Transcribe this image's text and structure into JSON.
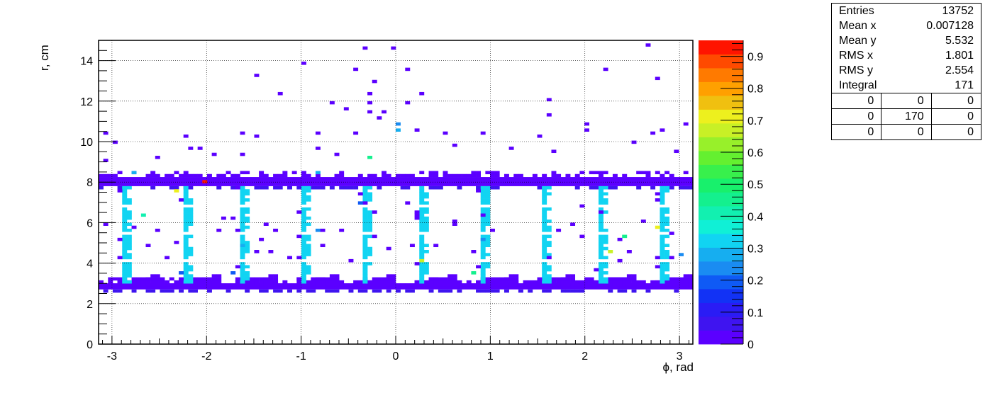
{
  "chart_data": {
    "type": "heatmap",
    "xlabel": "ϕ, rad",
    "ylabel": "r, cm",
    "xlim": [
      -3.1416,
      3.1416
    ],
    "ylim": [
      0,
      15
    ],
    "x_ticks": [
      "-3",
      "-2",
      "-1",
      "0",
      "1",
      "2",
      "3"
    ],
    "y_ticks": [
      "0",
      "2",
      "4",
      "6",
      "8",
      "10",
      "12",
      "14"
    ],
    "grid": true,
    "colorbar": {
      "range": [
        0,
        0.95
      ],
      "ticks": [
        "0",
        "0.1",
        "0.2",
        "0.3",
        "0.4",
        "0.5",
        "0.6",
        "0.7",
        "0.8",
        "0.9"
      ],
      "colors": [
        "#5B00FF",
        "#3F14F0",
        "#2A1CF5",
        "#1232F5",
        "#0F5AF5",
        "#1A8CF2",
        "#16AEF0",
        "#11D4F2",
        "#10F0D6",
        "#12F0B0",
        "#14F08E",
        "#18F06C",
        "#38F04C",
        "#64F030",
        "#98F02A",
        "#C8F026",
        "#EDF01E",
        "#F0C010",
        "#FFA000",
        "#FF7A00",
        "#FF4A00",
        "#FF1400"
      ]
    },
    "bands": [
      {
        "name": "outer ring",
        "r_min": 7.8,
        "r_max": 8.2,
        "value": 0.02
      },
      {
        "name": "inner ring",
        "r_min": 2.7,
        "r_max": 2.95,
        "value": 0.02
      }
    ],
    "columns_phi": [
      -2.86,
      -2.23,
      -1.6,
      -0.97,
      -0.34,
      0.29,
      0.92,
      1.55,
      2.18,
      2.81
    ],
    "columns_r": [
      3.0,
      7.8
    ],
    "columns_value": 0.33,
    "points": [
      {
        "x": -0.3,
        "y": 14.6,
        "v": 0.02
      },
      {
        "x": -0.02,
        "y": 14.6,
        "v": 0.02
      },
      {
        "x": 2.65,
        "y": 14.75,
        "v": 0.02
      },
      {
        "x": -0.95,
        "y": 13.9,
        "v": 0.02
      },
      {
        "x": -1.45,
        "y": 13.3,
        "v": 0.02
      },
      {
        "x": -0.4,
        "y": 13.6,
        "v": 0.02
      },
      {
        "x": 0.12,
        "y": 13.5,
        "v": 0.02
      },
      {
        "x": 2.22,
        "y": 13.5,
        "v": 0.02
      },
      {
        "x": 2.75,
        "y": 13.1,
        "v": 0.02
      },
      {
        "x": -0.2,
        "y": 13.0,
        "v": 0.02
      },
      {
        "x": -1.2,
        "y": 12.3,
        "v": 0.02
      },
      {
        "x": -0.29,
        "y": 12.3,
        "v": 0.02
      },
      {
        "x": 0.29,
        "y": 12.3,
        "v": 0.02
      },
      {
        "x": -0.65,
        "y": 11.9,
        "v": 0.02
      },
      {
        "x": -0.5,
        "y": 11.7,
        "v": 0.02
      },
      {
        "x": -0.29,
        "y": 11.9,
        "v": 0.02
      },
      {
        "x": 0.14,
        "y": 11.9,
        "v": 0.02
      },
      {
        "x": -0.29,
        "y": 11.5,
        "v": 0.02
      },
      {
        "x": -0.1,
        "y": 11.5,
        "v": 0.02
      },
      {
        "x": 1.6,
        "y": 12.1,
        "v": 0.02
      },
      {
        "x": 1.63,
        "y": 11.3,
        "v": 0.02
      },
      {
        "x": 0.0,
        "y": 10.9,
        "v": 0.25
      },
      {
        "x": -0.15,
        "y": 11.1,
        "v": 0.02
      },
      {
        "x": 0.02,
        "y": 10.5,
        "v": 0.3
      },
      {
        "x": -3.09,
        "y": 10.4,
        "v": 0.02
      },
      {
        "x": -2.95,
        "y": 10.0,
        "v": 0.02
      },
      {
        "x": -2.23,
        "y": 10.3,
        "v": 0.02
      },
      {
        "x": -1.6,
        "y": 10.4,
        "v": 0.02
      },
      {
        "x": -1.45,
        "y": 10.3,
        "v": 0.02
      },
      {
        "x": -0.84,
        "y": 10.4,
        "v": 0.02
      },
      {
        "x": -0.4,
        "y": 10.4,
        "v": 0.02
      },
      {
        "x": 0.22,
        "y": 10.6,
        "v": 0.02
      },
      {
        "x": 0.5,
        "y": 10.4,
        "v": 0.02
      },
      {
        "x": 0.92,
        "y": 10.4,
        "v": 0.02
      },
      {
        "x": 1.5,
        "y": 10.3,
        "v": 0.02
      },
      {
        "x": 2.04,
        "y": 10.9,
        "v": 0.02
      },
      {
        "x": 2.04,
        "y": 10.5,
        "v": 0.02
      },
      {
        "x": 2.7,
        "y": 10.4,
        "v": 0.02
      },
      {
        "x": 3.06,
        "y": 10.9,
        "v": 0.02
      },
      {
        "x": 2.8,
        "y": 10.5,
        "v": 0.02
      },
      {
        "x": -2.08,
        "y": 9.7,
        "v": 0.02
      },
      {
        "x": -2.15,
        "y": 9.7,
        "v": 0.02
      },
      {
        "x": -1.6,
        "y": 9.4,
        "v": 0.02
      },
      {
        "x": -0.8,
        "y": 9.7,
        "v": 0.02
      },
      {
        "x": -0.25,
        "y": 9.2,
        "v": 0.45
      },
      {
        "x": 0.6,
        "y": 9.8,
        "v": 0.02
      },
      {
        "x": 1.2,
        "y": 9.7,
        "v": 0.02
      },
      {
        "x": 1.65,
        "y": 9.5,
        "v": 0.02
      },
      {
        "x": 2.5,
        "y": 9.9,
        "v": 0.02
      },
      {
        "x": 2.98,
        "y": 9.5,
        "v": 0.02
      },
      {
        "x": -3.08,
        "y": 9.1,
        "v": 0.02
      },
      {
        "x": -2.5,
        "y": 9.2,
        "v": 0.02
      },
      {
        "x": -1.9,
        "y": 9.3,
        "v": 0.02
      },
      {
        "x": -0.6,
        "y": 9.3,
        "v": 0.02
      },
      {
        "x": -2.75,
        "y": 8.4,
        "v": 0.3
      },
      {
        "x": -0.83,
        "y": 8.5,
        "v": 0.3
      },
      {
        "x": -2.0,
        "y": 8.1,
        "v": 0.95
      },
      {
        "x": -2.33,
        "y": 7.5,
        "v": 0.7
      },
      {
        "x": -2.65,
        "y": 6.3,
        "v": 0.4
      },
      {
        "x": -1.8,
        "y": 6.2,
        "v": 0.02
      },
      {
        "x": -1.7,
        "y": 6.2,
        "v": 0.02
      },
      {
        "x": -0.3,
        "y": 6.9,
        "v": 0.02
      },
      {
        "x": -0.22,
        "y": 6.5,
        "v": 0.02
      },
      {
        "x": 0.14,
        "y": 6.9,
        "v": 0.02
      },
      {
        "x": 0.22,
        "y": 6.5,
        "v": 0.02
      },
      {
        "x": 0.6,
        "y": 6.1,
        "v": 0.02
      },
      {
        "x": 0.92,
        "y": 6.4,
        "v": 0.02
      },
      {
        "x": 1.98,
        "y": 6.8,
        "v": 0.02
      },
      {
        "x": 2.62,
        "y": 6.1,
        "v": 0.02
      },
      {
        "x": 2.18,
        "y": 6.5,
        "v": 0.02
      },
      {
        "x": -2.75,
        "y": 5.7,
        "v": 0.02
      },
      {
        "x": -2.53,
        "y": 5.6,
        "v": 0.02
      },
      {
        "x": -1.87,
        "y": 5.6,
        "v": 0.02
      },
      {
        "x": -1.35,
        "y": 5.9,
        "v": 0.02
      },
      {
        "x": -1.25,
        "y": 5.6,
        "v": 0.02
      },
      {
        "x": -0.84,
        "y": 5.6,
        "v": 0.25
      },
      {
        "x": -0.75,
        "y": 5.6,
        "v": 0.02
      },
      {
        "x": -0.55,
        "y": 5.6,
        "v": 0.02
      },
      {
        "x": -0.2,
        "y": 5.3,
        "v": 0.02
      },
      {
        "x": -3.08,
        "y": 5.9,
        "v": 0.02
      },
      {
        "x": 0.6,
        "y": 5.9,
        "v": 0.02
      },
      {
        "x": 1.02,
        "y": 5.6,
        "v": 0.02
      },
      {
        "x": 1.85,
        "y": 5.9,
        "v": 0.02
      },
      {
        "x": 1.7,
        "y": 5.6,
        "v": 0.02
      },
      {
        "x": 2.75,
        "y": 5.8,
        "v": 0.7
      },
      {
        "x": 2.9,
        "y": 5.5,
        "v": 0.02
      },
      {
        "x": 2.4,
        "y": 5.3,
        "v": 0.45
      },
      {
        "x": 2.35,
        "y": 5.1,
        "v": 0.02
      },
      {
        "x": 1.95,
        "y": 5.3,
        "v": 0.02
      },
      {
        "x": -2.33,
        "y": 5.0,
        "v": 0.02
      },
      {
        "x": -1.4,
        "y": 5.2,
        "v": 0.02
      },
      {
        "x": -0.75,
        "y": 4.8,
        "v": 0.02
      },
      {
        "x": 0.15,
        "y": 4.9,
        "v": 0.02
      },
      {
        "x": 0.4,
        "y": 4.8,
        "v": 0.02
      },
      {
        "x": -1.48,
        "y": 4.6,
        "v": 0.02
      },
      {
        "x": -1.3,
        "y": 4.6,
        "v": 0.02
      },
      {
        "x": -0.08,
        "y": 4.7,
        "v": 0.02
      },
      {
        "x": 0.83,
        "y": 4.6,
        "v": 0.02
      },
      {
        "x": 2.25,
        "y": 4.6,
        "v": 0.65
      },
      {
        "x": 2.45,
        "y": 4.6,
        "v": 0.02
      },
      {
        "x": -2.6,
        "y": 4.9,
        "v": 0.02
      },
      {
        "x": -2.4,
        "y": 4.3,
        "v": 0.02
      },
      {
        "x": -1.1,
        "y": 4.2,
        "v": 0.02
      },
      {
        "x": -0.45,
        "y": 4.1,
        "v": 0.02
      },
      {
        "x": 0.25,
        "y": 4.1,
        "v": 0.65
      },
      {
        "x": 1.6,
        "y": 4.2,
        "v": 0.02
      },
      {
        "x": 2.35,
        "y": 4.1,
        "v": 0.02
      },
      {
        "x": 2.92,
        "y": 4.3,
        "v": 0.02
      },
      {
        "x": 3.0,
        "y": 4.4,
        "v": 0.25
      },
      {
        "x": -2.25,
        "y": 3.5,
        "v": 0.2
      },
      {
        "x": -1.7,
        "y": 3.5,
        "v": 0.2
      },
      {
        "x": 0.8,
        "y": 3.5,
        "v": 0.45
      },
      {
        "x": -1.6,
        "y": 4.9,
        "v": 0.3
      },
      {
        "x": 0.92,
        "y": 5.1,
        "v": 0.25
      },
      {
        "x": -0.36,
        "y": 7.0,
        "v": 0.2
      }
    ]
  },
  "stats_box": {
    "rows": [
      {
        "label": "Entries",
        "value": "13752"
      },
      {
        "label": "Mean x",
        "value": "0.007128"
      },
      {
        "label": "Mean y",
        "value": "5.532"
      },
      {
        "label": "RMS x",
        "value": "1.801"
      },
      {
        "label": "RMS y",
        "value": "2.554"
      },
      {
        "label": "Integral",
        "value": "171"
      }
    ],
    "grid": [
      [
        "0",
        "0",
        "0"
      ],
      [
        "0",
        "170",
        "0"
      ],
      [
        "0",
        "0",
        "0"
      ]
    ]
  }
}
